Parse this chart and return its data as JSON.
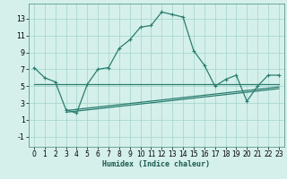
{
  "xlabel": "Humidex (Indice chaleur)",
  "bg_color": "#d5f0eb",
  "grid_color": "#a8d8d0",
  "line_color": "#2a7d6f",
  "spine_color": "#5a9a8a",
  "xlim": [
    -0.5,
    23.5
  ],
  "ylim": [
    -2.2,
    14.8
  ],
  "yticks": [
    -1,
    1,
    3,
    5,
    7,
    9,
    11,
    13
  ],
  "xticks": [
    0,
    1,
    2,
    3,
    4,
    5,
    6,
    7,
    8,
    9,
    10,
    11,
    12,
    13,
    14,
    15,
    16,
    17,
    18,
    19,
    20,
    21,
    22,
    23
  ],
  "main_line_x": [
    0,
    1,
    2,
    3,
    4,
    5,
    6,
    7,
    8,
    9,
    10,
    11,
    12,
    13,
    14,
    15,
    16,
    17,
    18,
    19,
    20,
    21,
    22,
    23
  ],
  "main_line_y": [
    7.2,
    6.0,
    5.5,
    2.2,
    1.8,
    5.2,
    7.0,
    7.2,
    9.5,
    10.5,
    12.0,
    12.2,
    13.8,
    13.5,
    13.2,
    9.2,
    7.5,
    5.0,
    5.8,
    6.3,
    3.2,
    5.0,
    6.3,
    6.3
  ],
  "flat_line_x": [
    0,
    23
  ],
  "flat_line_y": [
    5.2,
    5.2
  ],
  "trend_line_x": [
    3,
    23
  ],
  "trend_line_y": [
    1.9,
    4.7
  ],
  "trend_line2_x": [
    3,
    23
  ],
  "trend_line2_y": [
    2.1,
    4.9
  ],
  "marker_size": 2.8,
  "line_width": 0.9,
  "tick_fontsize": 5.5,
  "xlabel_fontsize": 6.0
}
